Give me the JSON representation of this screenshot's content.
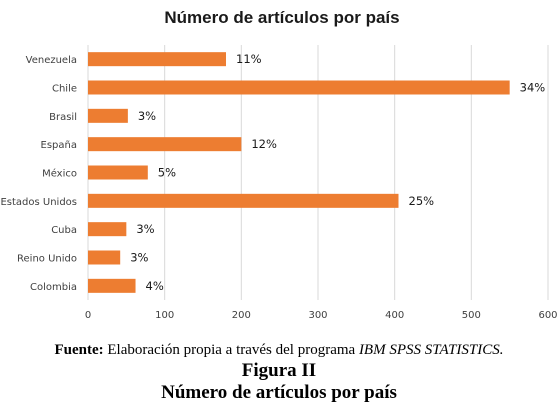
{
  "chart_data": {
    "type": "bar",
    "orientation": "horizontal",
    "title": "Número de artículos por país",
    "categories": [
      "Venezuela",
      "Chile",
      "Brasil",
      "España",
      "México",
      "Estados Unidos",
      "Cuba",
      "Reino Unido",
      "Colombia"
    ],
    "values": [
      180,
      550,
      52,
      200,
      78,
      405,
      50,
      42,
      62
    ],
    "data_labels": [
      "11%",
      "34%",
      "3%",
      "12%",
      "5%",
      "25%",
      "3%",
      "3%",
      "4%"
    ],
    "xlim": [
      0,
      600
    ],
    "xticks": [
      "0",
      "100",
      "200",
      "300",
      "400",
      "500",
      "600"
    ],
    "grid": true,
    "bar_color": "#ED7D31"
  },
  "caption": {
    "source_label": "Fuente:",
    "source_text": " Elaboración propia a través del programa ",
    "source_program": "IBM SPSS STATISTICS.",
    "figure_number": "Figura II",
    "figure_title": "Número de artículos por país"
  }
}
